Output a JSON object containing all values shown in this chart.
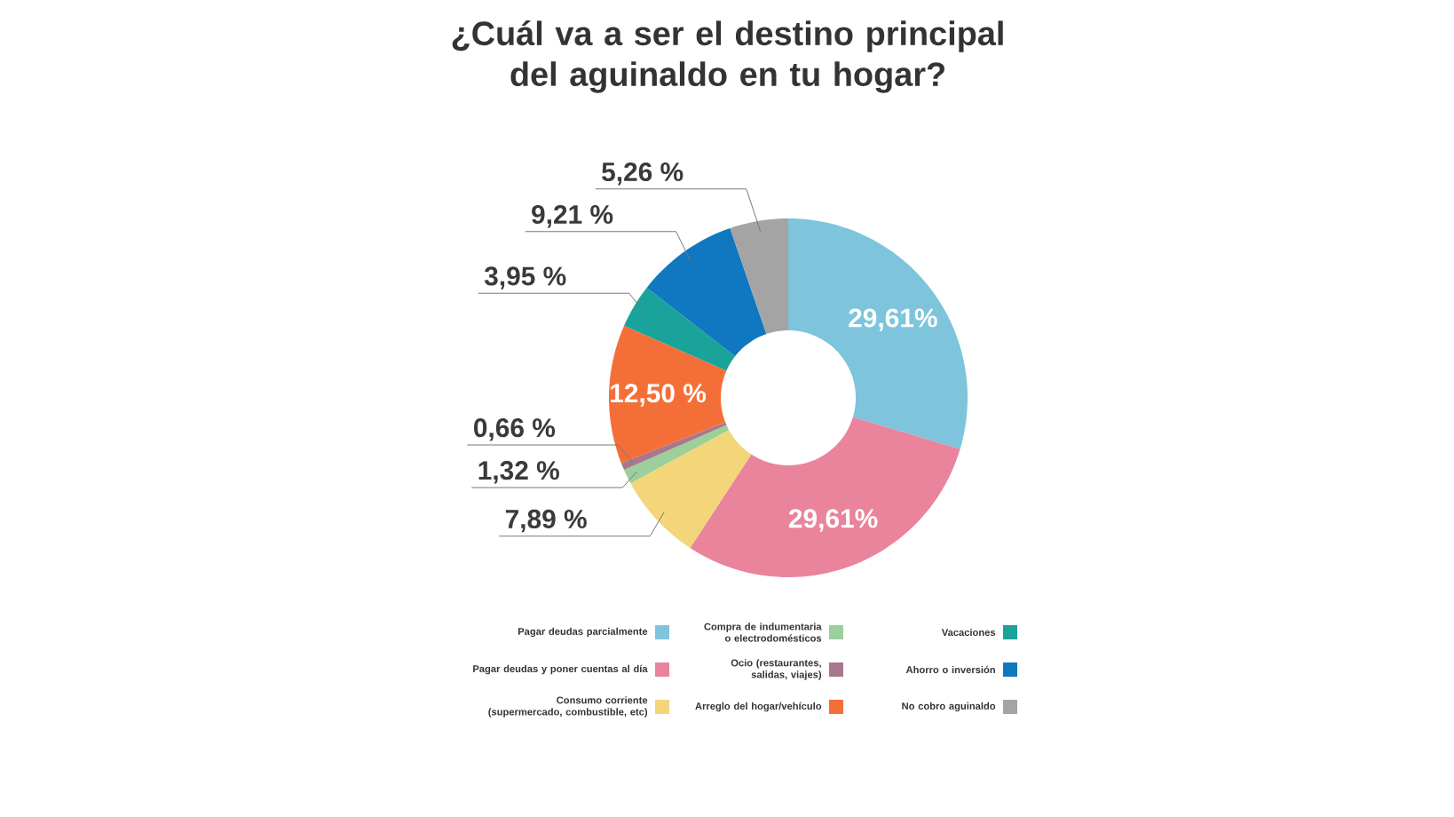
{
  "chart_data": {
    "type": "donut",
    "title": "¿Cuál va a ser el destino principal del aguinaldo en tu hogar?",
    "categories": [
      "Pagar deudas parcialmente",
      "Pagar deudas y poner cuentas al día",
      "Consumo corriente (supermercado, combustible, etc)",
      "Compra de indumentaria o electrodomésticos",
      "Ocio (restaurantes, salidas, viajes)",
      "Arreglo del hogar/vehículo",
      "Vacaciones",
      "Ahorro o inversión",
      "No cobro aguinaldo"
    ],
    "values": [
      29.61,
      29.61,
      7.89,
      1.32,
      0.66,
      12.5,
      3.95,
      9.21,
      5.26
    ],
    "colors": [
      "#7ec4dc",
      "#e9849c",
      "#f3d57a",
      "#9ccf9a",
      "#a7788e",
      "#f46f37",
      "#1aa39a",
      "#0f78c0",
      "#a4a4a4"
    ],
    "value_labels": [
      "29,61%",
      "29,61%",
      "7,89 %",
      "1,32 %",
      "0,66 %",
      "12,50 %",
      "3,95 %",
      "9,21 %",
      "5,26 %"
    ],
    "legend": "bottom"
  }
}
